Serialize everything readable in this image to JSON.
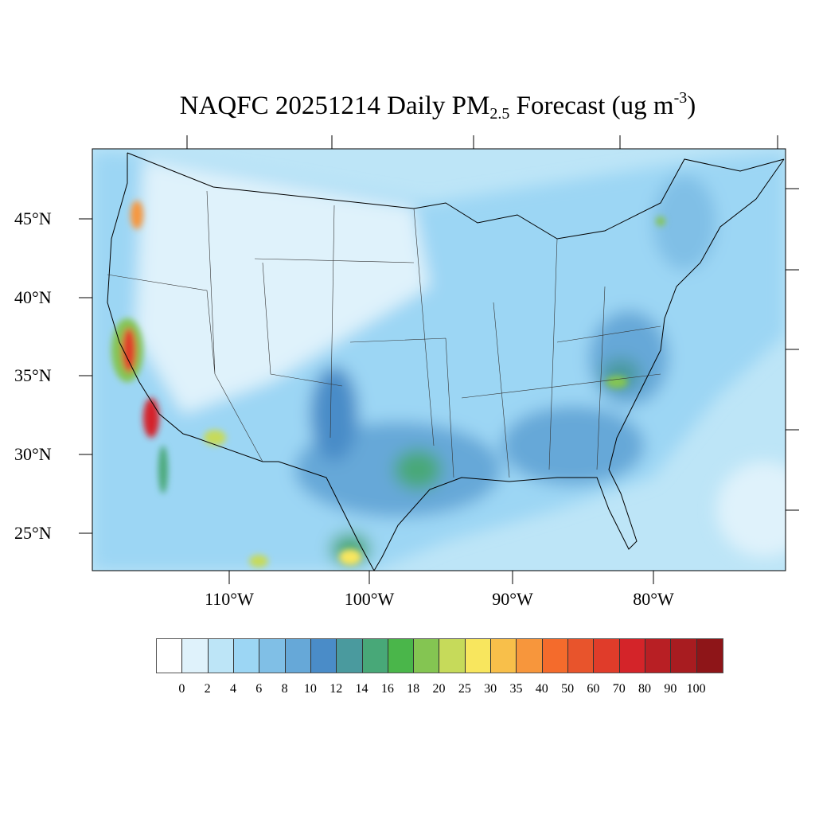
{
  "title": {
    "main": "NAQFC 20251214 Daily PM",
    "sub": "2.5",
    "rest": " Forecast (ug m",
    "sup": "-3",
    "close": ")"
  },
  "lat_labels": [
    "45°N",
    "40°N",
    "35°N",
    "30°N",
    "25°N"
  ],
  "lon_labels": [
    "110°W",
    "100°W",
    "90°W",
    "80°W"
  ],
  "colorbar": {
    "labels": [
      "0",
      "2",
      "4",
      "6",
      "8",
      "10",
      "12",
      "14",
      "16",
      "18",
      "20",
      "25",
      "30",
      "35",
      "40",
      "50",
      "60",
      "70",
      "80",
      "90",
      "100"
    ],
    "colors": [
      "#ffffff",
      "#dff2fb",
      "#bde5f7",
      "#9cd6f4",
      "#80bfe6",
      "#66a8d8",
      "#4a8cc8",
      "#4a9a9e",
      "#48a878",
      "#4ab64a",
      "#84c552",
      "#c6da5a",
      "#f8e65e",
      "#f8bf4a",
      "#f7963c",
      "#f46b2c",
      "#e8542c",
      "#e03c2a",
      "#d42429",
      "#b81f24",
      "#a81c20",
      "#8e1518"
    ]
  }
}
